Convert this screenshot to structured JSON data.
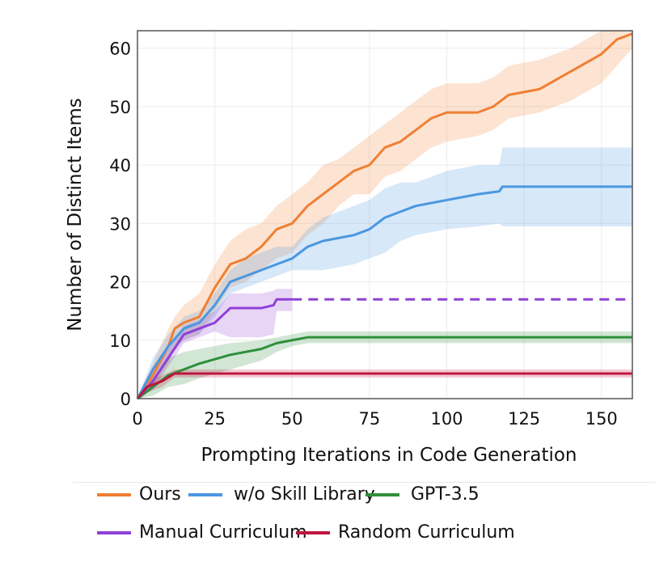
{
  "chart_data": {
    "type": "line",
    "title": "",
    "xlabel": "Prompting Iterations in Code Generation",
    "ylabel": "Number of Distinct Items",
    "xlim": [
      0,
      160
    ],
    "ylim": [
      0,
      63
    ],
    "xticks": [
      0,
      25,
      50,
      75,
      100,
      125,
      150
    ],
    "yticks": [
      0,
      10,
      20,
      30,
      40,
      50,
      60
    ],
    "grid": true,
    "legend_placement": "bottom",
    "series": [
      {
        "name": "Ours",
        "color": "#f07f33",
        "dashed_from": null,
        "x": [
          0,
          5,
          10,
          12,
          15,
          20,
          25,
          30,
          35,
          40,
          45,
          50,
          55,
          60,
          65,
          70,
          75,
          80,
          85,
          90,
          95,
          100,
          110,
          115,
          120,
          130,
          140,
          150,
          155,
          160
        ],
        "y": [
          0,
          4,
          9,
          12,
          13,
          14,
          19,
          23,
          24,
          26,
          29,
          30,
          33,
          35,
          37,
          39,
          40,
          43,
          44,
          46,
          48,
          49,
          49,
          50,
          52,
          53,
          56,
          59,
          61.5,
          62.5
        ],
        "lo": [
          0,
          2,
          6,
          9,
          10,
          11,
          15,
          19,
          20,
          22,
          24,
          25,
          28,
          30,
          33,
          35,
          35,
          38,
          39,
          41,
          43,
          44,
          45,
          46,
          48,
          49,
          51,
          54,
          57,
          60
        ],
        "hi": [
          0,
          6,
          12,
          14,
          16,
          18,
          23,
          27,
          29,
          30,
          33,
          35,
          37,
          40,
          41,
          43,
          45,
          47,
          49,
          51,
          53,
          54,
          54,
          55,
          57,
          58,
          60,
          63,
          63,
          63
        ]
      },
      {
        "name": "w/o Skill Library",
        "color": "#4a97e0",
        "dashed_from": null,
        "x": [
          0,
          5,
          10,
          15,
          20,
          25,
          30,
          35,
          40,
          45,
          50,
          55,
          60,
          70,
          75,
          80,
          85,
          90,
          100,
          110,
          117,
          118,
          160
        ],
        "y": [
          0,
          5,
          9,
          12,
          13,
          16,
          20,
          21,
          22,
          23,
          24,
          26,
          27,
          28,
          29,
          31,
          32,
          33,
          34,
          35,
          35.5,
          36.3,
          36.3
        ],
        "lo": [
          0,
          3,
          7,
          10,
          11,
          14,
          18,
          19,
          20,
          21,
          22,
          22,
          22,
          23,
          24,
          25,
          27,
          28,
          29,
          29.5,
          30,
          29.5,
          29.5
        ],
        "hi": [
          0,
          7,
          11,
          14,
          15,
          18,
          22,
          24,
          25,
          26,
          26,
          29,
          31,
          33,
          34,
          36,
          37,
          37,
          39,
          40,
          40,
          43,
          43
        ]
      },
      {
        "name": "GPT-3.5",
        "color": "#2f8f3a",
        "dashed_from": null,
        "x": [
          0,
          5,
          10,
          15,
          20,
          30,
          40,
          45,
          50,
          55,
          160
        ],
        "y": [
          0,
          2,
          4,
          5,
          6,
          7.5,
          8.5,
          9.5,
          10,
          10.5,
          10.5
        ],
        "lo": [
          0,
          0.5,
          2,
          2.5,
          3.5,
          5,
          6.5,
          8,
          9,
          9.5,
          9.5
        ],
        "hi": [
          0,
          3.5,
          7,
          8,
          8.5,
          9.5,
          10,
          10.5,
          11,
          11.5,
          11.5
        ]
      },
      {
        "name": "Manual Curriculum",
        "color": "#9040d8",
        "dashed_from": 50,
        "x": [
          0,
          5,
          10,
          15,
          20,
          25,
          30,
          40,
          44,
          45,
          50,
          160
        ],
        "y": [
          0,
          3,
          7,
          11,
          12,
          13,
          15.5,
          15.5,
          16,
          17,
          17,
          17
        ],
        "lo": [
          0,
          1.5,
          5.5,
          9.5,
          10.5,
          11.5,
          10.5,
          10.5,
          11,
          15,
          15,
          null
        ],
        "hi": [
          0,
          4.5,
          8.5,
          12.5,
          13.5,
          15,
          18,
          18,
          18.5,
          18.8,
          18.8,
          null
        ]
      },
      {
        "name": "Random Curriculum",
        "color": "#c0163f",
        "dashed_from": null,
        "x": [
          0,
          3,
          8,
          12,
          160
        ],
        "y": [
          0,
          2,
          3,
          4.3,
          4.3
        ],
        "lo": [
          0,
          1,
          2,
          3.6,
          3.6
        ],
        "hi": [
          0,
          3,
          4,
          5,
          5
        ]
      }
    ]
  }
}
